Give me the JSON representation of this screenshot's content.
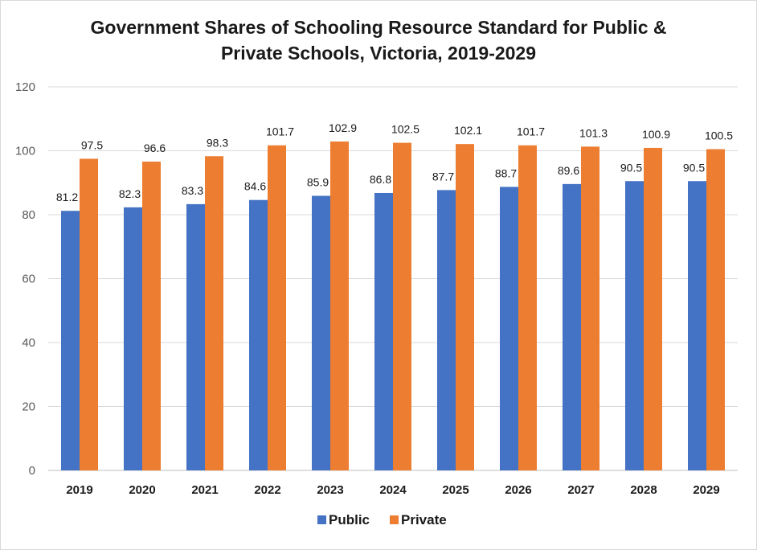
{
  "chart_data": {
    "type": "bar",
    "title_line1": "Government Shares of Schooling Resource Standard for Public &",
    "title_line2": "Private Schools, Victoria, 2019-2029",
    "xlabel": "",
    "ylabel": "",
    "ylim": [
      0,
      120
    ],
    "yticks": [
      0,
      20,
      40,
      60,
      80,
      100,
      120
    ],
    "grid": true,
    "legend_position": "bottom-center",
    "categories": [
      "2019",
      "2020",
      "2021",
      "2022",
      "2023",
      "2024",
      "2025",
      "2026",
      "2027",
      "2028",
      "2029"
    ],
    "series": [
      {
        "name": "Public",
        "color": "#4472c4",
        "values": [
          81.2,
          82.3,
          83.3,
          84.6,
          85.9,
          86.8,
          87.7,
          88.7,
          89.6,
          90.5,
          90.5
        ],
        "labels": [
          "81.2",
          "82.3",
          "83.3",
          "84.6",
          "85.9",
          "86.8",
          "87.7",
          "88.7",
          "89.6",
          "90.5",
          "90.5"
        ]
      },
      {
        "name": "Private",
        "color": "#ed7d31",
        "values": [
          97.5,
          96.6,
          98.3,
          101.7,
          102.9,
          102.5,
          102.1,
          101.7,
          101.3,
          100.9,
          100.5
        ],
        "labels": [
          "97.5",
          "96.6",
          "98.3",
          "101.7",
          "102.9",
          "102.5",
          "102.1",
          "101.7",
          "101.3",
          "100.9",
          "100.5"
        ]
      }
    ]
  }
}
